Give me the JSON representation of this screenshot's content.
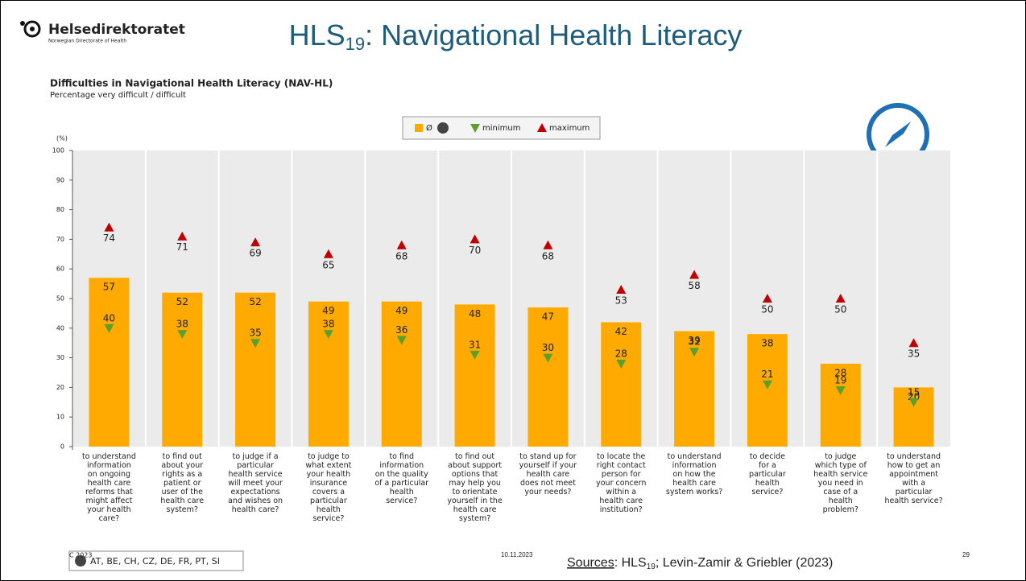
{
  "header": {
    "brand": "Helsedirektoratet",
    "brand_sub": "Norwegian Directorate of Health",
    "title_main": "HLS",
    "title_sub": "19",
    "title_rest": ": Navigational Health Literacy"
  },
  "chart_data": {
    "type": "bar",
    "title": "Difficulties in Navigational Health Literacy (NAV-HL)",
    "subtitle": "Percentage very difficult / difficult",
    "y_unit": "(%)",
    "categories": [
      "to understand\ninformation\non ongoing\nhealth care\nreforms that\nmight affect\nyour health\ncare?",
      "to find out\nabout your\nrights as a\npatient or\nuser of the\nhealth care\nsystem?",
      "to judge if a\nparticular\nhealth service\nwill meet your\nexpectations\nand wishes on\nhealth care?",
      "to judge to\nwhat extent\nyour health\ninsurance\ncovers a\nparticular\nhealth\nservice?",
      "to find\ninformation\non the quality\nof a particular\nhealth\nservice?",
      "to find out\nabout support\noptions that\nmay help you\nto orientate\nyourself in the\nhealth care\nsystem?",
      "to stand up for\nyourself if your\nhealth care\ndoes not meet\nyour needs?",
      "to locate the\nright contact\nperson for\nyour concern\nwithin a\nhealth care\ninstitution?",
      "to understand\ninformation\non how the\nhealth care\nsystem works?",
      "to decide\nfor a\nparticular\nhealth\nservice?",
      "to judge\nwhich type of\nhealth service\nyou need in\ncase of a\nhealth\nproblem?",
      "to understand\nhow to get an\nappointment\nwith a\nparticular\nhealth service?"
    ],
    "series": [
      {
        "name": "Ø",
        "color": "#ffaa00",
        "marker": "bar",
        "values": [
          57,
          52,
          52,
          49,
          49,
          48,
          47,
          42,
          39,
          38,
          28,
          20
        ]
      },
      {
        "name": "minimum",
        "color": "#5aa02c",
        "marker": "triangle-down",
        "values": [
          40,
          38,
          35,
          38,
          36,
          31,
          30,
          28,
          32,
          21,
          19,
          15
        ]
      },
      {
        "name": "maximum",
        "color": "#c00000",
        "marker": "triangle-up",
        "values": [
          74,
          71,
          69,
          65,
          68,
          70,
          68,
          53,
          58,
          50,
          50,
          35
        ]
      }
    ],
    "ylim": [
      0,
      100
    ],
    "yticks": [
      0,
      10,
      20,
      30,
      40,
      50,
      60,
      70,
      80,
      90,
      100
    ],
    "grid": false
  },
  "footer": {
    "countries": "AT, BE, CH, CZ, DE, FR, PT, SI",
    "copyright": "C 2023",
    "date": "10.11.2023",
    "sources_word": "Sources",
    "sources_a": ": HLS",
    "sources_sub": "19",
    "sources_b": "; Levin-Zamir & Griebler (2023)",
    "page": "29"
  }
}
